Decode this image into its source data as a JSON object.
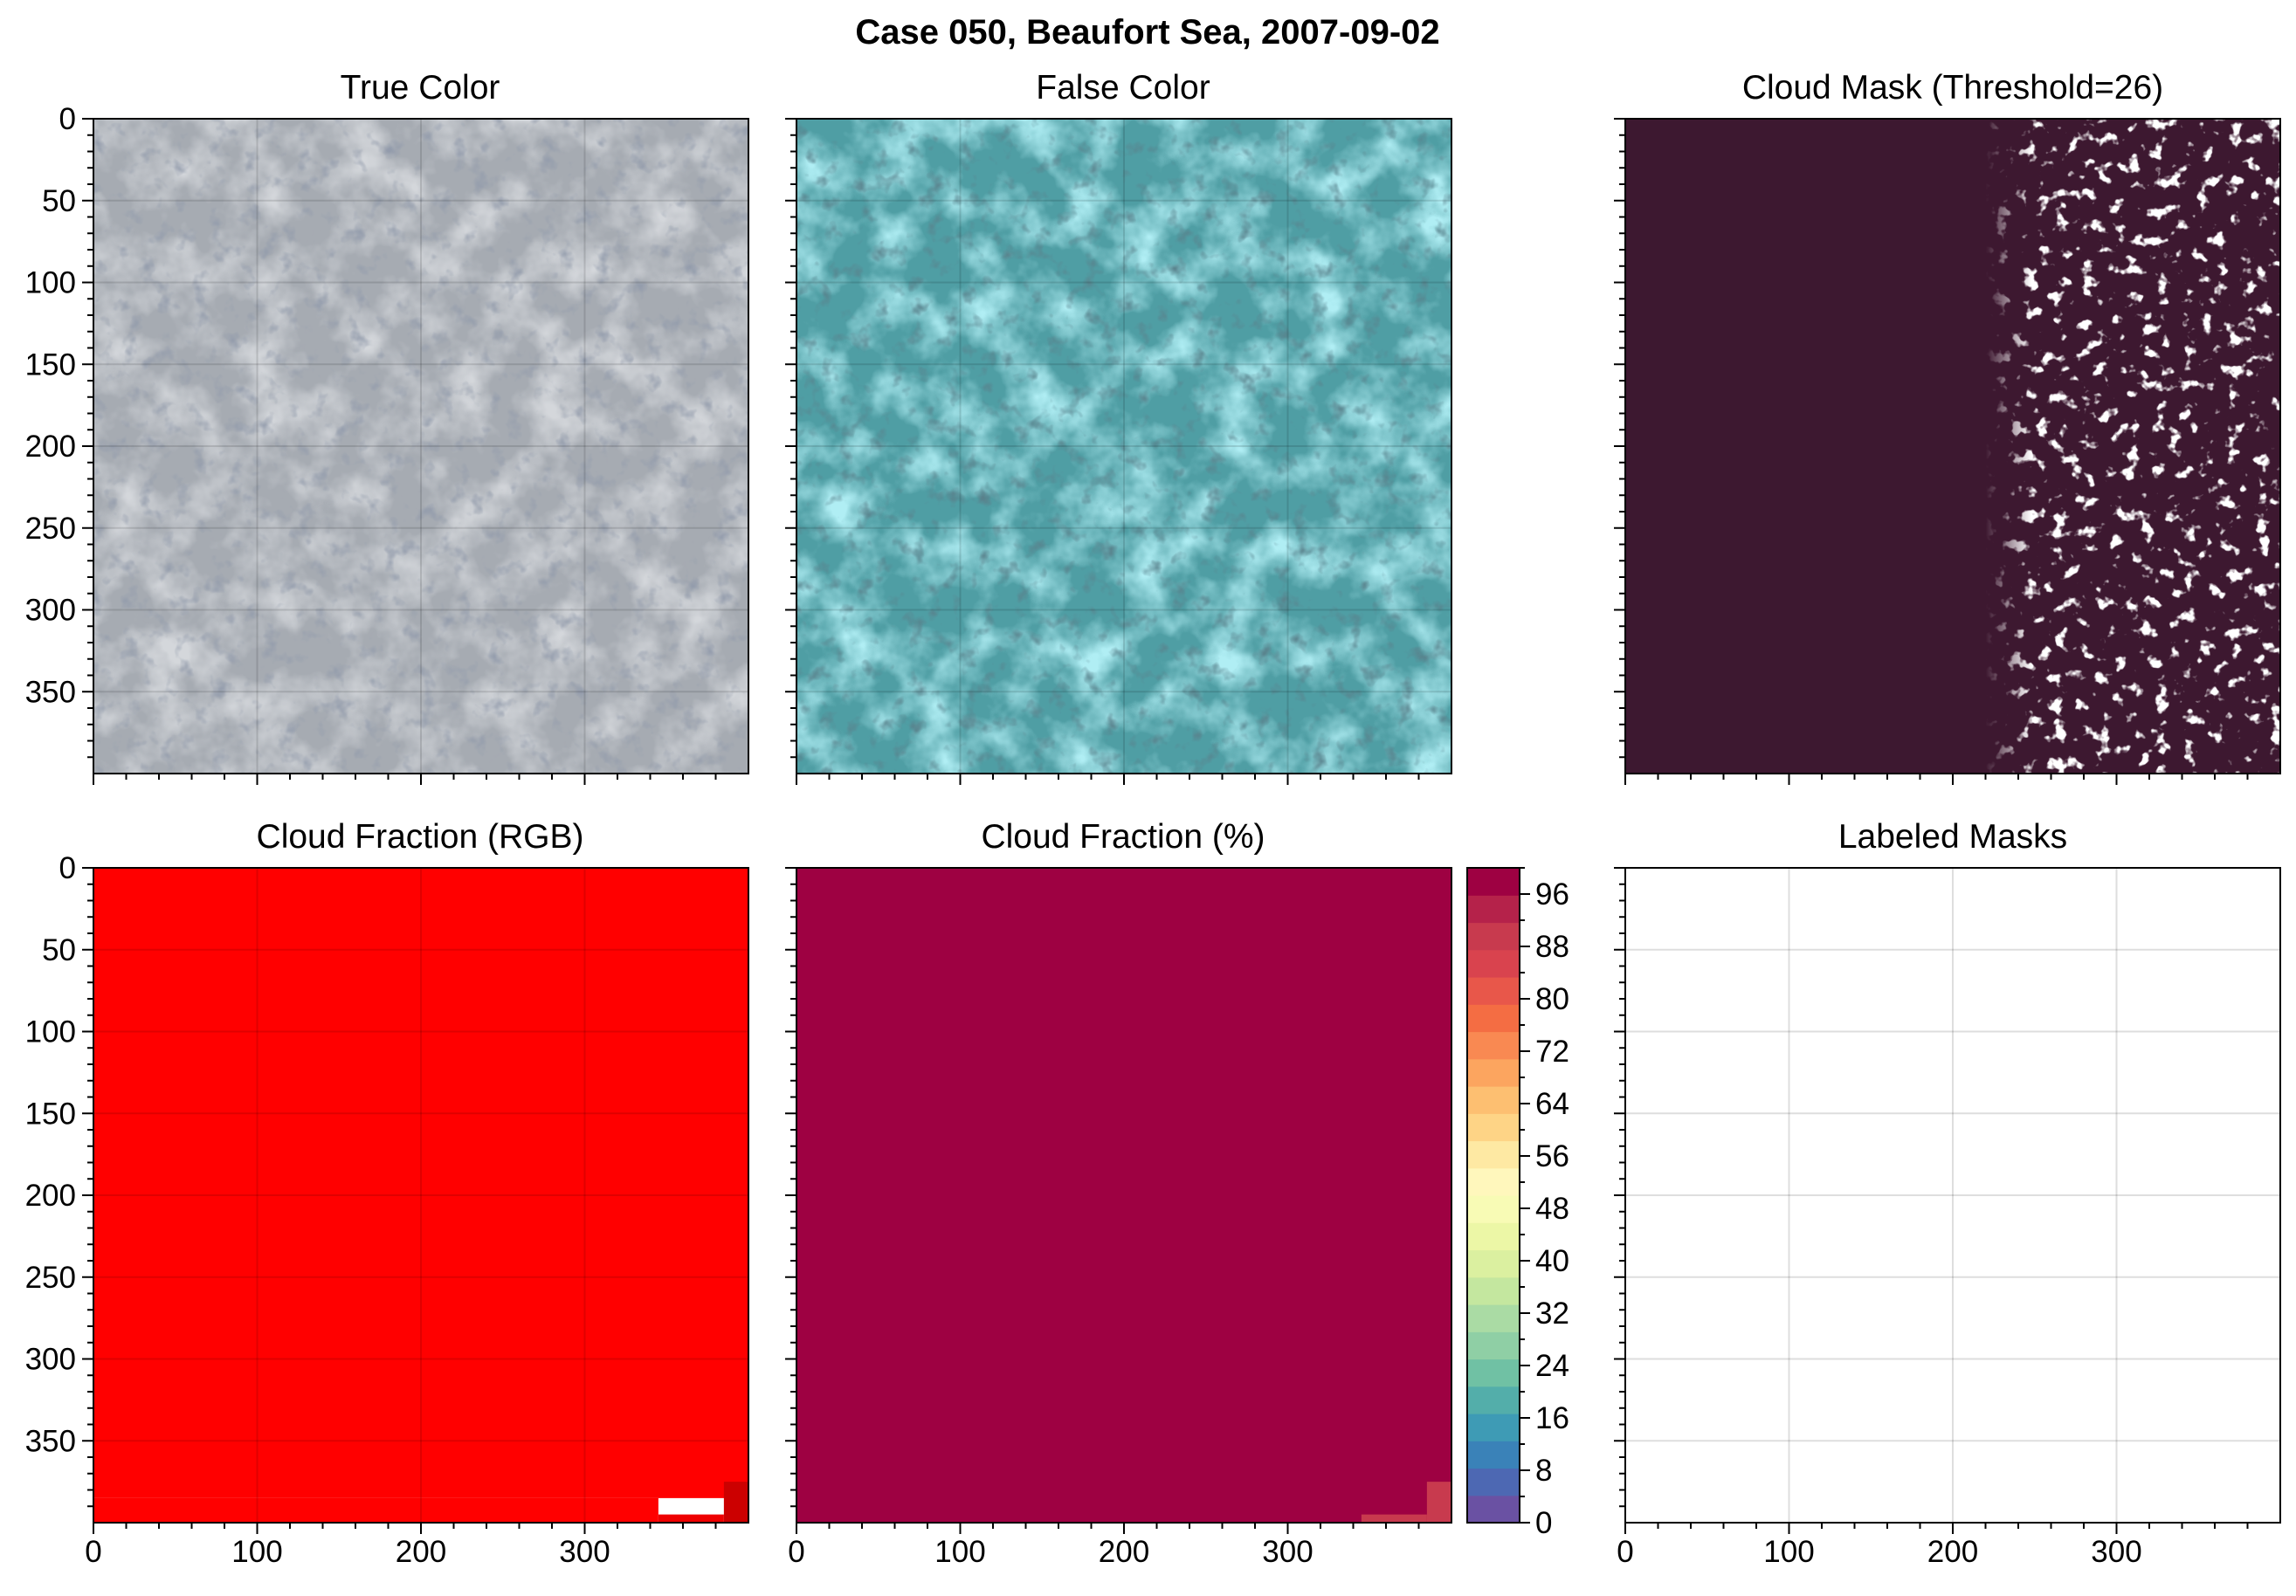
{
  "figure": {
    "suptitle": "Case 050, Beaufort Sea, 2007-09-02"
  },
  "chart_data": [
    {
      "id": "true-color",
      "type": "image",
      "title": "True Color",
      "xlim": [
        0,
        400
      ],
      "ylim": [
        400,
        0
      ],
      "xticks_shown": false,
      "yticks": [
        0,
        50,
        100,
        150,
        200,
        250,
        300,
        350
      ],
      "grid": true,
      "colors": {
        "base": "#a6abb2",
        "light": "#d7dce2",
        "dark": "#4a5568",
        "darkest": "#1f2b47"
      }
    },
    {
      "id": "false-color",
      "type": "image",
      "title": "False Color",
      "xlim": [
        0,
        400
      ],
      "ylim": [
        400,
        0
      ],
      "xticks_shown": false,
      "yticks_shown": false,
      "grid": true,
      "colors": {
        "base": "#4f9ea4",
        "light": "#6fe0e8",
        "dark": "#1f3f48",
        "darkest": "#0a1b22"
      }
    },
    {
      "id": "cloud-mask",
      "type": "heatmap",
      "title": "Cloud Mask (Threshold=26)",
      "xlim": [
        0,
        400
      ],
      "ylim": [
        400,
        0
      ],
      "xticks_shown": false,
      "yticks_shown": false,
      "grid": false,
      "colors": {
        "background": "#3d1830",
        "mask": "#ffffff"
      }
    },
    {
      "id": "cloud-fraction-rgb",
      "type": "heatmap",
      "title": "Cloud Fraction (RGB)",
      "xlim": [
        0,
        400
      ],
      "ylim": [
        400,
        0
      ],
      "xticks": [
        0,
        100,
        200,
        300
      ],
      "yticks": [
        0,
        50,
        100,
        150,
        200,
        250,
        300,
        350
      ],
      "grid": true,
      "cells": [
        {
          "x": [
            0,
            400
          ],
          "y": [
            0,
            385
          ],
          "color": "#ff0000"
        },
        {
          "x": [
            0,
            345
          ],
          "y": [
            385,
            400
          ],
          "color": "#ff0000"
        },
        {
          "x": [
            345,
            385
          ],
          "y": [
            395,
            400
          ],
          "color": "#ee0000"
        },
        {
          "x": [
            385,
            400
          ],
          "y": [
            375,
            400
          ],
          "color": "#cc0000"
        }
      ]
    },
    {
      "id": "cloud-fraction-pct",
      "type": "heatmap",
      "title": "Cloud Fraction (%)",
      "xlim": [
        0,
        400
      ],
      "ylim": [
        400,
        0
      ],
      "xticks": [
        0,
        100,
        200,
        300
      ],
      "yticks_shown": false,
      "grid": false,
      "cells": [
        {
          "x": [
            0,
            400
          ],
          "y": [
            0,
            400
          ],
          "value": 99,
          "color": "#9e0142"
        },
        {
          "x": [
            345,
            385
          ],
          "y": [
            395,
            400
          ],
          "value": 90,
          "color": "#c83a4e"
        },
        {
          "x": [
            385,
            400
          ],
          "y": [
            375,
            400
          ],
          "value": 90,
          "color": "#c83a4e"
        }
      ],
      "colorbar": {
        "min": 0,
        "max": 100,
        "step": 4,
        "ticks": [
          0,
          8,
          16,
          24,
          32,
          40,
          48,
          56,
          64,
          72,
          80,
          88,
          96
        ],
        "colors": [
          "#6a51a3",
          "#4d68b3",
          "#3a82b8",
          "#3e9bb5",
          "#53aeaa",
          "#70c1a4",
          "#8fcfa5",
          "#aadba4",
          "#c4e79f",
          "#dbf0a0",
          "#ecf7a6",
          "#f8fbb5",
          "#fff7bc",
          "#fee9a3",
          "#fed486",
          "#fdbf71",
          "#fca55f",
          "#f98952",
          "#f46d43",
          "#e8574a",
          "#d9434e",
          "#c83a4e",
          "#b5224a",
          "#9e0142"
        ]
      }
    },
    {
      "id": "labeled-masks",
      "type": "heatmap",
      "title": "Labeled Masks",
      "xlim": [
        0,
        400
      ],
      "ylim": [
        400,
        0
      ],
      "xticks": [
        0,
        100,
        200,
        300
      ],
      "yticks_shown": false,
      "grid": true,
      "cells": []
    }
  ]
}
